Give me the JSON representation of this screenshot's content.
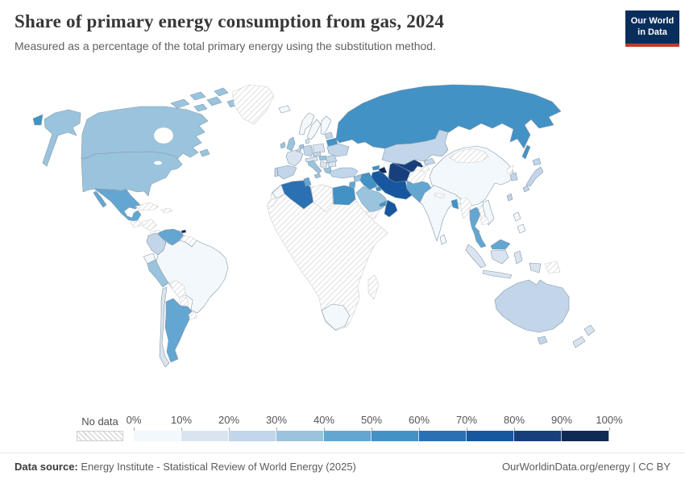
{
  "header": {
    "title": "Share of primary energy consumption from gas, 2024",
    "subtitle": "Measured as a percentage of the total primary energy using the substitution method."
  },
  "logo": {
    "line1": "Our World",
    "line2": "in Data"
  },
  "legend": {
    "no_data_label": "No data",
    "ticks": [
      "0%",
      "10%",
      "20%",
      "30%",
      "40%",
      "50%",
      "60%",
      "70%",
      "80%",
      "90%",
      "100%"
    ],
    "bin_colors": [
      "#f3f8fc",
      "#dae4f0",
      "#c2d5e9",
      "#9ac4dd",
      "#63a6d2",
      "#4292c6",
      "#2b70b2",
      "#16579f",
      "#173f7c",
      "#0f2a55"
    ],
    "no_data_pattern": "diagonal-hatch"
  },
  "map": {
    "regions": {
      "usa": "United States",
      "alaska": "United States",
      "canada": "Canada",
      "canada_arctic": "Canada",
      "chukotka": "Russia",
      "greenland": "Greenland",
      "mexico": "Mexico",
      "guatemala": "Guatemala",
      "honduras_nicaragua": "Honduras and Nicaragua",
      "costa_panama": "Costa Rica and Panama",
      "cuba": "Cuba",
      "hispaniola": "Hispaniola",
      "trinidad": "Trinidad and Tobago",
      "venezuela": "Venezuela",
      "guyanas": "Guyanas",
      "colombia": "Colombia",
      "ecuador": "Ecuador",
      "peru": "Peru",
      "brazil": "Brazil",
      "bolivia": "Bolivia",
      "paraguay": "Paraguay",
      "uruguay": "Uruguay",
      "chile": "Chile",
      "argentina": "Argentina",
      "iceland": "Iceland",
      "norway": "Norway",
      "sweden": "Sweden",
      "finland": "Finland",
      "uk": "United Kingdom",
      "ireland": "Ireland",
      "france": "France",
      "spain": "Spain",
      "portugal": "Portugal",
      "germany": "Germany",
      "netherlands": "Netherlands",
      "belgium": "Belgium",
      "denmark": "Denmark",
      "poland": "Poland",
      "czechia": "Czechia",
      "austria_switzerland": "Austria and Switzerland",
      "italy": "Italy",
      "hungary": "Hungary",
      "romania": "Romania",
      "bulgaria": "Bulgaria",
      "balkans": "Serbia and Balkans",
      "greece": "Greece",
      "baltics": "Baltic states",
      "belarus": "Belarus",
      "ukraine": "Ukraine",
      "russia": "Russia",
      "sakhalin": "Russia",
      "kazakhstan": "Kazakhstan",
      "georgia": "Georgia",
      "azerbaijan": "Azerbaijan",
      "turkmenistan": "Turkmenistan",
      "uzbekistan": "Uzbekistan",
      "kyrgyzstan": "Kyrgyzstan",
      "tajikistan": "Tajikistan",
      "afghanistan": "Afghanistan",
      "turkey": "Turkey",
      "syria": "Syria",
      "iraq": "Iraq",
      "jordan_israel": "Jordan and Israel",
      "kuwait": "Kuwait",
      "saudi": "Saudi Arabia",
      "yemen": "Yemen",
      "oman": "Oman",
      "uae": "United Arab Emirates",
      "iran": "Iran",
      "pakistan": "Pakistan",
      "india": "India",
      "nepal": "Nepal",
      "sri_lanka": "Sri Lanka",
      "bangladesh": "Bangladesh",
      "china": "China",
      "mongolia": "Mongolia",
      "myanmar": "Myanmar",
      "thailand": "Thailand",
      "laos": "Laos",
      "cambodia": "Cambodia",
      "vietnam": "Vietnam",
      "malaysia": "Malaysia",
      "indonesia": "Indonesia",
      "philippines": "Philippines",
      "png": "Papua New Guinea",
      "north_korea": "North Korea",
      "south_korea": "South Korea",
      "japan": "Japan",
      "taiwan": "Taiwan",
      "morocco": "Morocco",
      "western_sahara": "Western Sahara",
      "algeria": "Algeria",
      "tunisia": "Tunisia",
      "libya": "Libya",
      "egypt": "Egypt",
      "africa_rest": "Sub-Saharan Africa",
      "south_africa": "South Africa",
      "madagascar": "Madagascar",
      "australia": "Australia",
      "new_zealand": "New Zealand"
    }
  },
  "chart_data": {
    "type": "heatmap",
    "title": "Share of primary energy consumption from gas, 2024",
    "subtitle": "Measured as a percentage of the total primary energy using the substitution method.",
    "unit": "%",
    "legend_position": "bottom",
    "color_scale": {
      "min": 0,
      "max": 100,
      "bin_size": 10,
      "no_data": "hatched"
    },
    "values": {
      "United States": 36,
      "Canada": 35,
      "Mexico": 45,
      "Trinidad and Tobago": 92,
      "Venezuela": 46,
      "Colombia": 25,
      "Ecuador": 6,
      "Peru": 35,
      "Brazil": 8,
      "Chile": 14,
      "Argentina": 48,
      "Iceland": 3,
      "Norway": 4,
      "Sweden": 3,
      "Finland": 6,
      "United Kingdom": 36,
      "Ireland": 32,
      "France": 15,
      "Spain": 24,
      "Portugal": 24,
      "Germany": 25,
      "Netherlands": 35,
      "Belgium": 27,
      "Denmark": 13,
      "Poland": 17,
      "Czechia": 23,
      "Austria and Switzerland": 18,
      "Italy": 37,
      "Hungary": 33,
      "Romania": 28,
      "Bulgaria": 13,
      "Serbia and Balkans": 15,
      "Greece": 34,
      "Baltic states": 26,
      "Belarus": 58,
      "Ukraine": 27,
      "Russia": 55,
      "Kazakhstan": 26,
      "Georgia": 55,
      "Azerbaijan": 92,
      "Turkmenistan": 84,
      "Uzbekistan": 84,
      "Kyrgyzstan": 25,
      "Turkey": 26,
      "Syria": 36,
      "Iraq": 55,
      "Jordan and Israel": 46,
      "Kuwait": 55,
      "Saudi Arabia": 38,
      "Oman": 76,
      "United Arab Emirates": 57,
      "Iran": 78,
      "Pakistan": 43,
      "India": 6,
      "Sri Lanka": 5,
      "Bangladesh": 56,
      "China": 8,
      "Thailand": 44,
      "Vietnam": 8,
      "Malaysia": 42,
      "Indonesia": 15,
      "Philippines": 6,
      "South Korea": 25,
      "Japan": 22,
      "Taiwan": 25,
      "Morocco": 6,
      "Algeria": 64,
      "Tunisia": 45,
      "Egypt": 55,
      "South Africa": 3,
      "Australia": 26,
      "New Zealand": 15
    }
  },
  "footer": {
    "source_label": "Data source:",
    "source_text": " Energy Institute - Statistical Review of World Energy (2025)",
    "credit_text": "OurWorldinData.org/energy | CC BY"
  }
}
